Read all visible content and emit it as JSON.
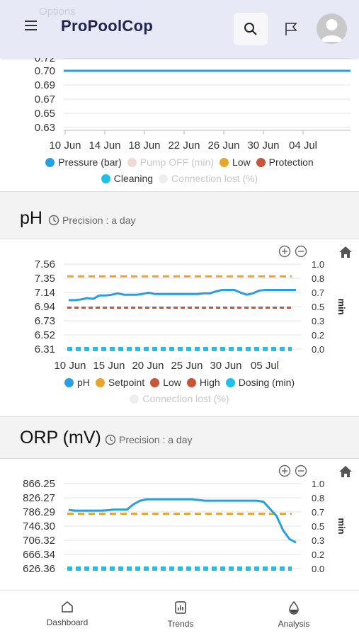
{
  "header": {
    "ghost_text": "Options",
    "brand": "ProPoolCop"
  },
  "pressure": {
    "y_ticks": [
      "0.72",
      "0.70",
      "0.69",
      "0.67",
      "0.65",
      "0.63"
    ],
    "x_ticks": [
      "10 Jun",
      "14 Jun",
      "18 Jun",
      "22 Jun",
      "26 Jun",
      "30 Jun",
      "04 Jul"
    ],
    "legend": [
      {
        "label": "Pressure (bar)",
        "color": "#2a9fe0",
        "muted": false
      },
      {
        "label": "Pump OFF (min)",
        "color": "#f3d9d3",
        "muted": true
      },
      {
        "label": "Low",
        "color": "#e8a52c",
        "muted": false
      },
      {
        "label": "Protection",
        "color": "#c8553a",
        "muted": false
      },
      {
        "label": "Cleaning",
        "color": "#1ec0e8",
        "muted": false
      },
      {
        "label": "Connection lost (%)",
        "color": "#eeeeee",
        "muted": true
      }
    ]
  },
  "ph": {
    "title": "pH",
    "precision": "Precision : a day",
    "y_ticks": [
      "7.56",
      "7.35",
      "7.14",
      "6.94",
      "6.73",
      "6.52",
      "6.31"
    ],
    "y2_ticks": [
      "1.0",
      "0.8",
      "0.7",
      "0.5",
      "0.3",
      "0.2",
      "0.0"
    ],
    "y2_label": "min",
    "x_ticks": [
      "10 Jun",
      "15 Jun",
      "20 Jun",
      "25 Jun",
      "30 Jun",
      "05 Jul"
    ],
    "legend": [
      {
        "label": "pH",
        "color": "#2a9fe0",
        "muted": false
      },
      {
        "label": "Setpoint",
        "color": "#e8a52c",
        "muted": false
      },
      {
        "label": "Low",
        "color": "#c8553a",
        "muted": false
      },
      {
        "label": "High",
        "color": "#c8553a",
        "muted": false
      },
      {
        "label": "Dosing (min)",
        "color": "#1ec0e8",
        "muted": false
      },
      {
        "label": "Connection lost (%)",
        "color": "#eeeeee",
        "muted": true
      }
    ]
  },
  "orp": {
    "title": "ORP (mV)",
    "precision": "Precision : a day",
    "y_ticks": [
      "866.25",
      "826.27",
      "786.29",
      "746.30",
      "706.32",
      "666.34",
      "626.36"
    ],
    "y2_ticks": [
      "1.0",
      "0.8",
      "0.7",
      "0.5",
      "0.3",
      "0.2",
      "0.0"
    ],
    "y2_label": "min"
  },
  "nav": {
    "items": [
      {
        "label": "Dashboard",
        "icon": "home-icon"
      },
      {
        "label": "Trends",
        "icon": "trends-icon"
      },
      {
        "label": "Analysis",
        "icon": "drop-icon"
      }
    ]
  },
  "chart_data": [
    {
      "type": "line",
      "chart": "pressure",
      "x": [
        "10 Jun",
        "14 Jun",
        "18 Jun",
        "22 Jun",
        "26 Jun",
        "30 Jun",
        "04 Jul"
      ],
      "series": [
        {
          "name": "Pressure (bar)",
          "values": [
            0.7,
            0.7,
            0.7,
            0.7,
            0.7,
            0.7,
            0.7
          ]
        }
      ]
    },
    {
      "type": "line",
      "chart": "ph",
      "series": [
        {
          "name": "pH",
          "values": [
            7.03,
            7.03,
            7.04,
            7.06,
            7.05,
            7.1,
            7.1,
            7.11,
            7.13,
            7.11,
            7.11,
            7.11,
            7.12,
            7.14,
            7.12,
            7.12,
            7.12,
            7.12,
            7.12,
            7.12,
            7.12,
            7.12,
            7.13,
            7.13,
            7.16,
            7.18,
            7.18,
            7.18,
            7.14,
            7.11,
            7.13,
            7.17,
            7.18,
            7.18,
            7.18,
            7.18,
            7.18,
            7.18
          ]
        },
        {
          "name": "Setpoint",
          "constant": 7.38
        },
        {
          "name": "Low",
          "constant": 6.92
        },
        {
          "name": "Dosing (min)",
          "constant": 0.0
        }
      ]
    },
    {
      "type": "line",
      "chart": "orp",
      "series": [
        {
          "name": "ORP",
          "values": [
            792,
            790,
            790,
            790,
            790,
            790,
            791,
            793,
            793,
            793,
            808,
            818,
            822,
            822,
            822,
            822,
            822,
            822,
            822,
            822,
            820,
            818,
            818,
            818,
            818,
            818,
            818,
            818,
            818,
            818,
            815,
            795,
            775,
            735,
            710,
            700
          ]
        },
        {
          "name": "Setpoint",
          "constant": 781
        },
        {
          "name": "Dosing (min)",
          "constant": 0.0
        }
      ]
    }
  ]
}
